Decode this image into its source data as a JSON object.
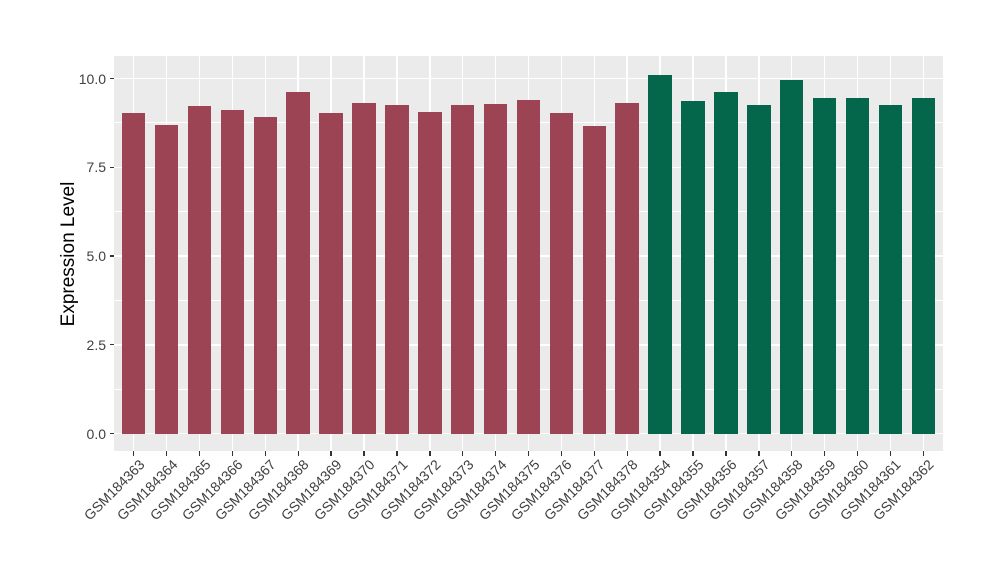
{
  "chart": {
    "background": "#FFFFFF",
    "panel_background": "#EBEBEB",
    "gridline_color": "#FFFFFF",
    "tick_mark_color": "#333333",
    "axis_text_color": "#404040",
    "axis_title_color": "#000000",
    "group_colors": [
      "#9C4453",
      "#04674B"
    ]
  },
  "chart_data": {
    "type": "bar",
    "title": "",
    "xlabel": "",
    "ylabel": "Expression Level",
    "ylim": [
      0,
      10.6
    ],
    "grid": true,
    "legend": "none",
    "y_ticks": [
      0,
      2.5,
      5,
      7.5,
      10
    ],
    "y_tick_labels": [
      "0.0",
      "2.5",
      "5.0",
      "7.5",
      "10.0"
    ],
    "y_minor_ticks": [
      1.25,
      3.75,
      6.25,
      8.75
    ],
    "categories": [
      "GSM184363",
      "GSM184364",
      "GSM184365",
      "GSM184366",
      "GSM184367",
      "GSM184368",
      "GSM184369",
      "GSM184370",
      "GSM184371",
      "GSM184372",
      "GSM184373",
      "GSM184374",
      "GSM184375",
      "GSM184376",
      "GSM184377",
      "GSM184378",
      "GSM184354",
      "GSM184355",
      "GSM184356",
      "GSM184357",
      "GSM184358",
      "GSM184359",
      "GSM184360",
      "GSM184361",
      "GSM184362"
    ],
    "values": [
      9.02,
      8.69,
      9.23,
      9.11,
      8.93,
      9.62,
      9.04,
      9.3,
      9.25,
      9.05,
      9.26,
      9.28,
      9.39,
      9.02,
      8.65,
      9.31,
      10.11,
      9.37,
      9.62,
      9.25,
      9.96,
      9.45,
      9.46,
      9.26,
      9.45
    ],
    "colors": [
      "#9C4453",
      "#9C4453",
      "#9C4453",
      "#9C4453",
      "#9C4453",
      "#9C4453",
      "#9C4453",
      "#9C4453",
      "#9C4453",
      "#9C4453",
      "#9C4453",
      "#9C4453",
      "#9C4453",
      "#9C4453",
      "#9C4453",
      "#9C4453",
      "#04674B",
      "#04674B",
      "#04674B",
      "#04674B",
      "#04674B",
      "#04674B",
      "#04674B",
      "#04674B",
      "#04674B"
    ]
  }
}
